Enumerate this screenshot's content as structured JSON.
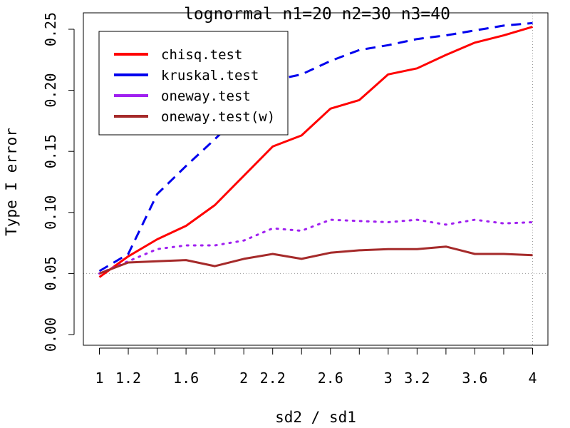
{
  "chart_data": {
    "type": "line",
    "title": "lognormal n1=20 n2=30 n3=40",
    "xlabel": "sd2 / sd1",
    "ylabel": "Type I error",
    "xlim": [
      0.95,
      4.1
    ],
    "ylim": [
      -0.01,
      0.261
    ],
    "x_ticks": [
      1,
      1.2,
      1.6,
      2,
      2.2,
      2.6,
      3,
      3.2,
      3.6,
      4
    ],
    "x_tick_labels": [
      "1",
      "1.2",
      "1.6",
      "2",
      "2.2",
      "2.6",
      "3",
      "3.2",
      "3.6",
      "4"
    ],
    "y_ticks": [
      0,
      0.05,
      0.1,
      0.15,
      0.2,
      0.25
    ],
    "y_tick_labels": [
      "0.00",
      "0.05",
      "0.10",
      "0.15",
      "0.20",
      "0.25"
    ],
    "reference_lines": {
      "horizontal": 0.05,
      "vertical": 4,
      "color": "#9a9a9a",
      "style": "dotted"
    },
    "legend_position": "top-left",
    "x": [
      1,
      1.2,
      1.4,
      1.6,
      1.8,
      2,
      2.2,
      2.4,
      2.6,
      2.8,
      3,
      3.2,
      3.4,
      3.6,
      3.8,
      4
    ],
    "series": [
      {
        "name": "chisq.test",
        "color": "#ff0000",
        "dash": "solid",
        "values": [
          0.047,
          0.064,
          0.078,
          0.089,
          0.106,
          0.13,
          0.154,
          0.163,
          0.185,
          0.192,
          0.213,
          0.218,
          0.229,
          0.239,
          0.245,
          0.252
        ]
      },
      {
        "name": "kruskal.test",
        "color": "#0000ee",
        "dash": "dashed",
        "values": [
          0.052,
          0.066,
          0.115,
          0.138,
          0.16,
          0.183,
          0.208,
          0.213,
          0.224,
          0.233,
          0.237,
          0.242,
          0.245,
          0.249,
          0.253,
          0.255
        ]
      },
      {
        "name": "oneway.test",
        "color": "#a020f0",
        "dash": "dotted",
        "values": [
          0.05,
          0.06,
          0.07,
          0.073,
          0.073,
          0.077,
          0.087,
          0.085,
          0.094,
          0.093,
          0.092,
          0.094,
          0.09,
          0.094,
          0.091,
          0.092
        ]
      },
      {
        "name": "oneway.test(w)",
        "color": "#a52a2a",
        "dash": "solid",
        "values": [
          0.05,
          0.059,
          0.06,
          0.061,
          0.056,
          0.062,
          0.066,
          0.062,
          0.067,
          0.069,
          0.07,
          0.07,
          0.072,
          0.066,
          0.066,
          0.065
        ]
      }
    ]
  }
}
